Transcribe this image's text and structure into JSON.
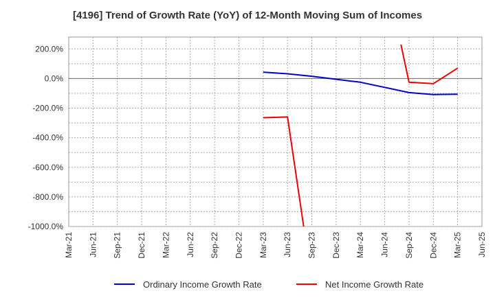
{
  "chart_data": {
    "type": "line",
    "title": "[4196]  Trend of Growth Rate (YoY) of 12-Month Moving Sum of Incomes",
    "xlabel": "",
    "ylabel": "",
    "ylim": [
      -1000,
      280
    ],
    "y_ticks": [
      200,
      0,
      -200,
      -400,
      -600,
      -800,
      -1000
    ],
    "y_tick_labels": [
      "200.0%",
      "0.0%",
      "-200.0%",
      "-400.0%",
      "-600.0%",
      "-800.0%",
      "-1000.0%"
    ],
    "x_ticks": [
      "2021-03",
      "2021-06",
      "2021-09",
      "2021-12",
      "2022-03",
      "2022-06",
      "2022-09",
      "2022-12",
      "2023-03",
      "2023-06",
      "2023-09",
      "2023-12",
      "2024-03",
      "2024-06",
      "2024-09",
      "2024-12",
      "2025-03",
      "2025-06"
    ],
    "x_tick_labels": [
      "Mar-21",
      "Jun-21",
      "Sep-21",
      "Dec-21",
      "Mar-22",
      "Jun-22",
      "Sep-22",
      "Dec-22",
      "Mar-23",
      "Jun-23",
      "Sep-23",
      "Dec-23",
      "Mar-24",
      "Jun-24",
      "Sep-24",
      "Dec-24",
      "Mar-25",
      "Jun-25"
    ],
    "grid": true,
    "legend_position": "bottom",
    "series": [
      {
        "name": "Ordinary Income Growth Rate",
        "color": "#0000cc",
        "points": [
          {
            "x": "2023-03",
            "y": 43
          },
          {
            "x": "2023-06",
            "y": 32
          },
          {
            "x": "2023-09",
            "y": 15
          },
          {
            "x": "2023-12",
            "y": -5
          },
          {
            "x": "2024-03",
            "y": -25
          },
          {
            "x": "2024-06",
            "y": -60
          },
          {
            "x": "2024-09",
            "y": -95
          },
          {
            "x": "2024-12",
            "y": -108
          },
          {
            "x": "2025-03",
            "y": -106
          }
        ]
      },
      {
        "name": "Net Income Growth Rate",
        "color": "#ee0000",
        "segments": [
          [
            {
              "x": "2023-03",
              "y": -265
            },
            {
              "x": "2023-06",
              "y": -260
            },
            {
              "x": "2023-08",
              "y": -1000
            }
          ],
          [
            {
              "x": "2024-08",
              "y": 230
            },
            {
              "x": "2024-09",
              "y": -25
            },
            {
              "x": "2024-12",
              "y": -35
            },
            {
              "x": "2025-03",
              "y": 70
            }
          ]
        ]
      }
    ]
  }
}
